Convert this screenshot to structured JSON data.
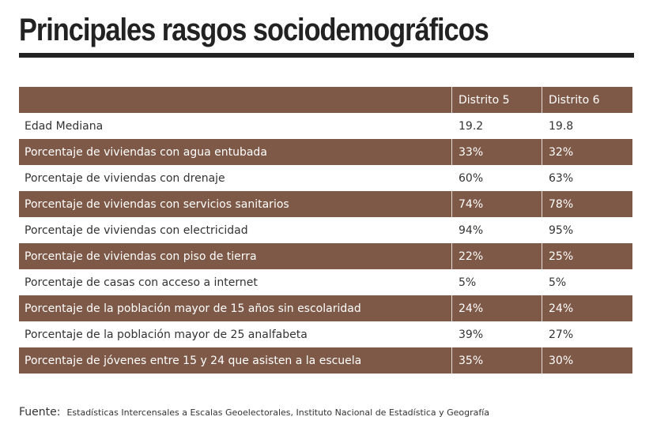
{
  "title": "Principales rasgos sociodemográficos",
  "table": {
    "headers": [
      "",
      "Distrito 5",
      "Distrito 6"
    ],
    "rows": [
      {
        "label": "Edad Mediana",
        "d5": "19.2",
        "d6": "19.8"
      },
      {
        "label": "Porcentaje de viviendas con agua entubada",
        "d5": "33%",
        "d6": "32%"
      },
      {
        "label": "Porcentaje de viviendas con drenaje",
        "d5": "60%",
        "d6": "63%"
      },
      {
        "label": "Porcentaje de viviendas con servicios sanitarios",
        "d5": "74%",
        "d6": "78%"
      },
      {
        "label": "Porcentaje de viviendas con electricidad",
        "d5": "94%",
        "d6": "95%"
      },
      {
        "label": "Porcentaje de viviendas con piso de tierra",
        "d5": "22%",
        "d6": "25%"
      },
      {
        "label": "Porcentaje de casas con acceso a internet",
        "d5": "5%",
        "d6": "5%"
      },
      {
        "label": "Porcentaje de la población mayor de 15 años sin escolaridad",
        "d5": "24%",
        "d6": "24%"
      },
      {
        "label": "Porcentaje de la población mayor de 25 analfabeta",
        "d5": "39%",
        "d6": "27%"
      },
      {
        "label": "Porcentaje de jóvenes entre 15 y 24 que asisten a la escuela",
        "d5": "35%",
        "d6": "30%"
      }
    ]
  },
  "source": {
    "label": "Fuente:",
    "text": "Estadísticas Intercensales a Escalas Geoelectorales, Instituto Nacional de Estadística y Geografía"
  },
  "colors": {
    "row_dark": "#7f5948",
    "title": "#222222"
  }
}
